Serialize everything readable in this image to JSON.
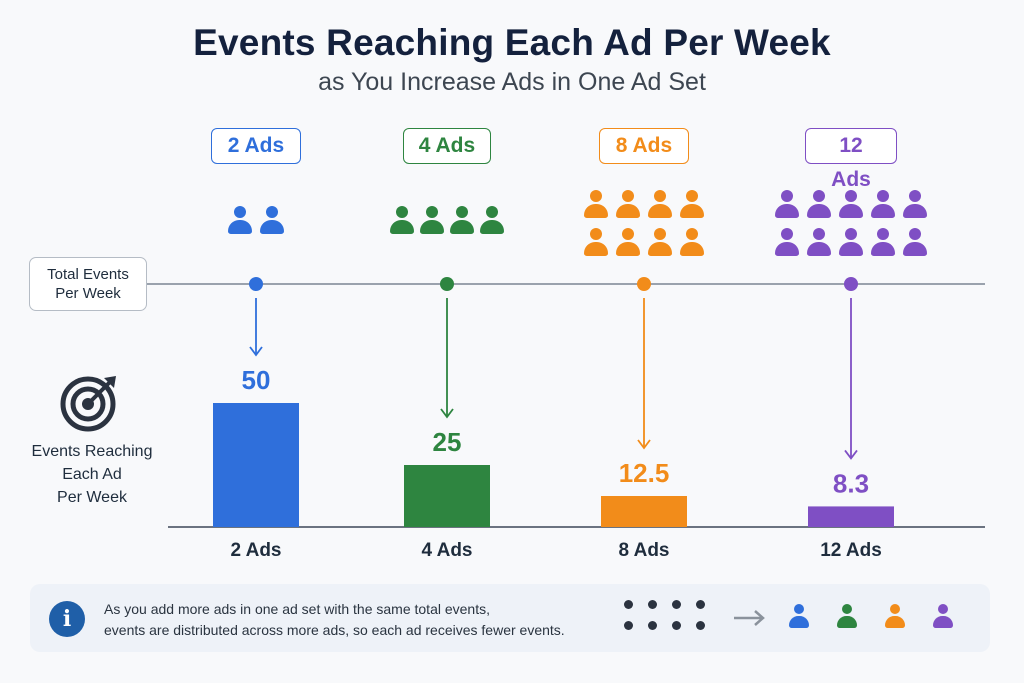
{
  "title": "Events Reaching Each Ad Per Week",
  "subtitle": "as You Increase Ads in One Ad Set",
  "line_label": {
    "line1": "Total Events",
    "line2": "Per Week"
  },
  "y_label": {
    "line1": "Events Reaching",
    "line2": "Each Ad",
    "line3": "Per Week"
  },
  "note": {
    "line1": "As you add more ads in one ad set with the same total events,",
    "line2": "events are distributed across more ads, so each ad receives fewer events.",
    "info_icon": "info-icon"
  },
  "groups": [
    {
      "chip": "2 Ads",
      "people": 2,
      "color": "#2f6fdb"
    },
    {
      "chip": "4 Ads",
      "people": 4,
      "color": "#2e8540"
    },
    {
      "chip": "8 Ads",
      "people": 8,
      "color": "#f28c1a"
    },
    {
      "chip": "12 Ads",
      "people": 10,
      "color": "#7f4fc4"
    }
  ],
  "chart_data": {
    "type": "bar",
    "categories": [
      "2 Ads",
      "4 Ads",
      "8 Ads",
      "12 Ads"
    ],
    "values": [
      50,
      25,
      12.5,
      8.3
    ],
    "data_labels": [
      "50",
      "25",
      "12.5",
      "8.3"
    ],
    "colors": [
      "#2f6fdb",
      "#2e8540",
      "#f28c1a",
      "#7f4fc4"
    ],
    "title": "Events Reaching Each Ad Per Week",
    "subtitle": "as You Increase Ads in One Ad Set",
    "ylabel": "Events Reaching Each Ad Per Week",
    "xlabel": "",
    "grid": false
  }
}
